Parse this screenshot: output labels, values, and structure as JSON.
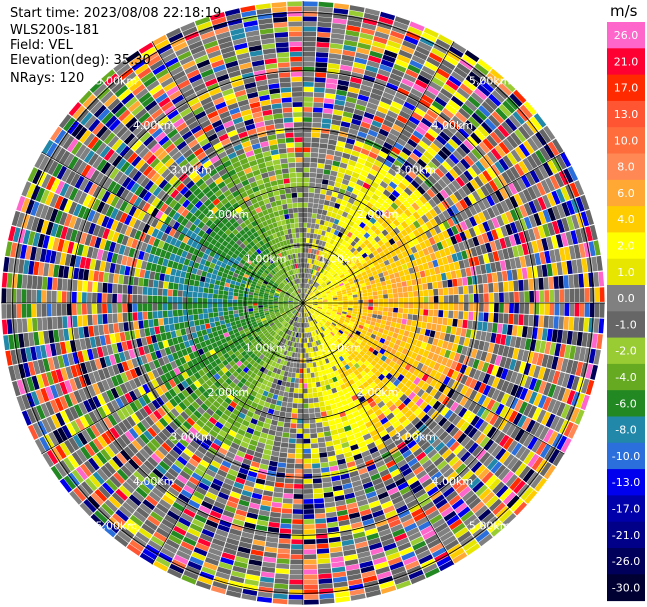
{
  "header": {
    "start_time": "Start time: 2023/08/08 22:18:19",
    "instrument": "WLS200s-181",
    "field": "Field: VEL",
    "elevation": "Elevation(deg): 35.30",
    "nrays": "NRays: 120"
  },
  "chart_data": {
    "type": "heatmap",
    "projection": "polar-ppi",
    "field": "VEL",
    "units": "m/s",
    "n_rays": 120,
    "max_range_km": 5.2,
    "range_rings_km": [
      1,
      2,
      3,
      4,
      5
    ],
    "ring_labels": [
      {
        "km": 1,
        "text": "1.00km"
      },
      {
        "km": 2,
        "text": "2.00km"
      },
      {
        "km": 3,
        "text": "3.00km"
      },
      {
        "km": 4,
        "text": "4.00km"
      },
      {
        "km": 5,
        "text": "5.00km"
      }
    ],
    "colorbar": {
      "label": "m/s",
      "levels": [
        26.0,
        21.0,
        17.0,
        13.0,
        10.0,
        8.0,
        6.0,
        4.0,
        2.0,
        1.0,
        0.0,
        -1.0,
        -2.0,
        -4.0,
        -6.0,
        -8.0,
        -10.0,
        -13.0,
        -17.0,
        -21.0,
        -26.0,
        -30.0
      ],
      "tick_labels": [
        "26.0",
        "21.0",
        "17.0",
        "13.0",
        "10.0",
        "8.0",
        "6.0",
        "4.0",
        "2.0",
        "1.0",
        "0.0",
        "-1.0",
        "-2.0",
        "-4.0",
        "-6.0",
        "-8.0",
        "-10.0",
        "-13.0",
        "-17.0",
        "-21.0",
        "-26.0",
        "-30.0"
      ],
      "colors": [
        "#ff66cc",
        "#ff0033",
        "#ff2a00",
        "#ff5533",
        "#ff6d3d",
        "#ff8855",
        "#ffa833",
        "#ffcc00",
        "#ffff00",
        "#e6e600",
        "#808080",
        "#666666",
        "#99cc33",
        "#66aa22",
        "#228822",
        "#2288aa",
        "#2a6fdb",
        "#0000ee",
        "#0000aa",
        "#000088",
        "#00005a",
        "#000033"
      ]
    },
    "velocity_pattern": {
      "inner_range_km": 2.8,
      "toward_azimuth_deg": 95,
      "away_azimuth_deg": 255,
      "peak_positive_ms": 6.0,
      "peak_negative_ms": -6.0
    }
  }
}
